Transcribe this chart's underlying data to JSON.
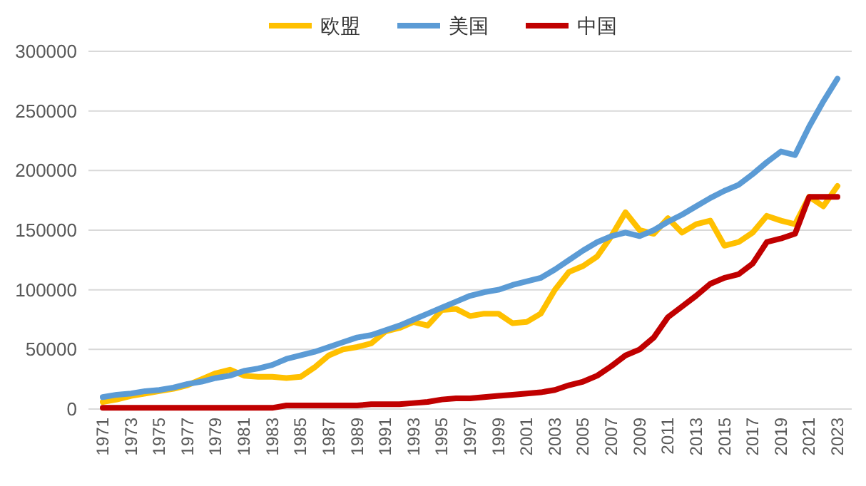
{
  "chart_data": {
    "type": "line",
    "categories": [
      "1971",
      null,
      "1973",
      null,
      "1975",
      null,
      "1977",
      null,
      "1979",
      null,
      "1981",
      null,
      "1983",
      null,
      "1985",
      null,
      "1987",
      null,
      "1989",
      null,
      "1991",
      null,
      "1993",
      null,
      "1995",
      null,
      "1997",
      null,
      "1999",
      null,
      "2001",
      null,
      "2003",
      null,
      "2005",
      null,
      "2007",
      null,
      "2009",
      null,
      "2011",
      null,
      "2013",
      null,
      "2015",
      null,
      "2017",
      null,
      "2019",
      null,
      "2021",
      null,
      "2023"
    ],
    "series": [
      {
        "name": "欧盟",
        "color": "#ffc000",
        "values": [
          6000,
          8000,
          11000,
          13000,
          15000,
          17000,
          20000,
          25000,
          30000,
          33000,
          28000,
          27000,
          27000,
          26000,
          27000,
          35000,
          45000,
          50000,
          52000,
          55000,
          65000,
          68000,
          73000,
          70000,
          83000,
          84000,
          78000,
          80000,
          80000,
          72000,
          73000,
          80000,
          100000,
          115000,
          120000,
          128000,
          145000,
          165000,
          150000,
          147000,
          160000,
          148000,
          155000,
          158000,
          137000,
          140000,
          148000,
          162000,
          158000,
          155000,
          178000,
          170000,
          187000
        ]
      },
      {
        "name": "美国",
        "color": "#5b9bd5",
        "values": [
          10000,
          12000,
          13000,
          15000,
          16000,
          18000,
          21000,
          23000,
          26000,
          28000,
          32000,
          34000,
          37000,
          42000,
          45000,
          48000,
          52000,
          56000,
          60000,
          62000,
          66000,
          70000,
          75000,
          80000,
          85000,
          90000,
          95000,
          98000,
          100000,
          104000,
          107000,
          110000,
          117000,
          125000,
          133000,
          140000,
          145000,
          148000,
          145000,
          150000,
          157000,
          163000,
          170000,
          177000,
          183000,
          188000,
          197000,
          207000,
          216000,
          213000,
          237000,
          258000,
          277000
        ]
      },
      {
        "name": "中国",
        "color": "#c00000",
        "values": [
          1000,
          1000,
          1000,
          1000,
          1000,
          1000,
          1000,
          1000,
          1000,
          1000,
          1000,
          1000,
          1000,
          3000,
          3000,
          3000,
          3000,
          3000,
          3000,
          4000,
          4000,
          4000,
          5000,
          6000,
          8000,
          9000,
          9000,
          10000,
          11000,
          12000,
          13000,
          14000,
          16000,
          20000,
          23000,
          28000,
          36000,
          45000,
          50000,
          60000,
          77000,
          86000,
          95000,
          105000,
          110000,
          113000,
          122000,
          140000,
          143000,
          147000,
          178000,
          178000,
          178000
        ]
      }
    ],
    "ylim": [
      0,
      300000
    ],
    "yticks": [
      0,
      50000,
      100000,
      150000,
      200000,
      250000,
      300000
    ],
    "grid": "y",
    "legend": "top",
    "line_style": "solid",
    "marker": "none"
  }
}
